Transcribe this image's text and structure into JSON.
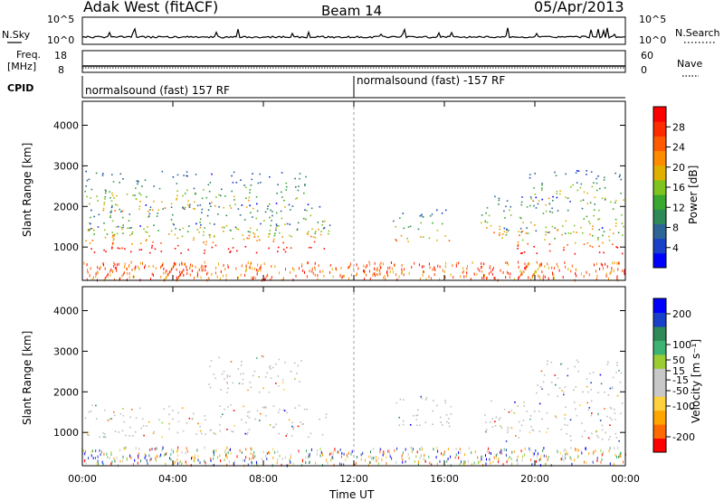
{
  "header": {
    "title": "Adak West (fitACF)",
    "beam": "Beam 14",
    "date": "05/Apr/2013"
  },
  "strips": {
    "nsky": {
      "label": "N.Sky",
      "ticks": [
        "10^5",
        "10^0"
      ]
    },
    "nsearch": {
      "label": "N.Search",
      "ticks": [
        "10^5",
        "10^0"
      ]
    },
    "freq": {
      "label_line1": "Freq.",
      "label_line2": "[MHz]",
      "ticks": [
        "18",
        "8"
      ]
    },
    "nave": {
      "label": "Nave",
      "ticks": [
        "60",
        "0"
      ]
    },
    "cpid": {
      "label": "CPID",
      "segments": [
        {
          "text": "normalsound (fast) 157 RF",
          "start_hour": 0
        },
        {
          "text": "normalsound (fast) -157 RF",
          "start_hour": 12
        }
      ]
    }
  },
  "chart_data": [
    {
      "type": "heatmap",
      "name": "power",
      "ylabel": "Slant Range [km]",
      "ylim": [
        180,
        4590
      ],
      "y_ticks": [
        "1000",
        "2000",
        "3000",
        "4000"
      ],
      "y_tick_values": [
        1000,
        2000,
        3000,
        4000
      ],
      "colorbar": {
        "label": "Power [dB]",
        "range": [
          0,
          32
        ],
        "tick_labels": [
          "4",
          "8",
          "12",
          "16",
          "20",
          "24",
          "28"
        ],
        "tick_values": [
          4,
          8,
          12,
          16,
          20,
          24,
          28
        ],
        "colors": [
          "#0000ff",
          "#1a3fc8",
          "#2e6496",
          "#2e8b57",
          "#38a830",
          "#7fc41e",
          "#e0b000",
          "#ff8c00",
          "#ff5a00",
          "#ff2a00",
          "#ff0000"
        ]
      },
      "scatter_regions": [
        {
          "h0": 0.1,
          "h1": 9.9,
          "r0": 1900,
          "r1": 2900
        },
        {
          "h0": 0.2,
          "h1": 10.8,
          "r0": 1250,
          "r1": 2100
        },
        {
          "h0": 0.1,
          "h1": 11.0,
          "r0": 860,
          "r1": 1600
        },
        {
          "h0": 13.7,
          "h1": 16.2,
          "r0": 1150,
          "r1": 1950
        },
        {
          "h0": 17.6,
          "h1": 23.9,
          "r0": 1300,
          "r1": 2300
        },
        {
          "h0": 18.5,
          "h1": 23.9,
          "r0": 850,
          "r1": 1500
        },
        {
          "h0": 19.7,
          "h1": 23.9,
          "r0": 2050,
          "r1": 2900
        }
      ]
    },
    {
      "type": "heatmap",
      "name": "velocity",
      "ylabel": "Slant Range [km]",
      "xlabel": "Time UT",
      "ylim": [
        180,
        4590
      ],
      "y_ticks": [
        "1000",
        "2000",
        "3000",
        "4000"
      ],
      "y_tick_values": [
        1000,
        2000,
        3000,
        4000
      ],
      "x_ticks": [
        "00:00",
        "04:00",
        "08:00",
        "12:00",
        "16:00",
        "20:00",
        "00:00"
      ],
      "x_tick_hours": [
        0,
        4,
        8,
        12,
        16,
        20,
        24
      ],
      "colorbar": {
        "label": "Velocity [m s⁻¹]",
        "range": [
          -250,
          250
        ],
        "tick_labels": [
          "-200",
          "-100",
          "-50",
          "-15",
          "15",
          "50",
          "100",
          "200"
        ],
        "tick_values": [
          -200,
          -100,
          -50,
          -15,
          15,
          50,
          100,
          200
        ],
        "colors": [
          "#ff0000",
          "#ff6a00",
          "#ffa500",
          "#ffd040",
          "#c8c8c8",
          "#c8c8c8",
          "#9acd32",
          "#3cb371",
          "#2e8b57",
          "#1a3fc8",
          "#0000ff"
        ]
      },
      "scatter_regions": [
        {
          "h0": 0.1,
          "h1": 10.8,
          "r0": 900,
          "r1": 1700
        },
        {
          "h0": 5.5,
          "h1": 9.8,
          "r0": 2000,
          "r1": 2900
        },
        {
          "h0": 13.8,
          "h1": 16.5,
          "r0": 1100,
          "r1": 1900
        },
        {
          "h0": 17.6,
          "h1": 23.9,
          "r0": 800,
          "r1": 1800
        },
        {
          "h0": 20.0,
          "h1": 23.9,
          "r0": 1900,
          "r1": 2800
        }
      ]
    }
  ],
  "colors": {
    "axes": "#000000",
    "ground_scatter": "#bebebe"
  }
}
